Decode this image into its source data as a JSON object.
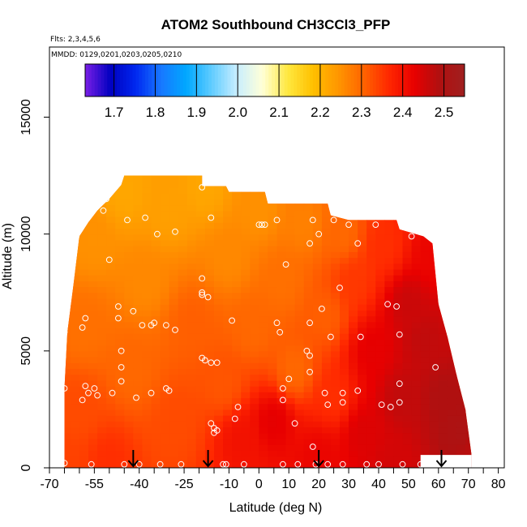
{
  "chart_data": {
    "type": "heatmap",
    "title": "ATOM2 Southbound CH3CCl3_PFP",
    "flights_label": "Flts: 2,3,4,5,6",
    "dates_label": "MMDD: 0129,0201,0203,0205,0210",
    "xlabel": "Latitude (deg N)",
    "ylabel": "Altitude (m)",
    "xlim": [
      -70,
      82
    ],
    "ylim": [
      0,
      18000
    ],
    "x_ticks": [
      -70,
      -55,
      -40,
      -25,
      -10,
      0,
      10,
      20,
      30,
      40,
      50,
      60,
      70,
      80
    ],
    "x_minor_ticks": [
      -65,
      -60,
      -50,
      -45,
      -35,
      -30,
      -20,
      -15,
      -5,
      5,
      15,
      25,
      35,
      45,
      55,
      65,
      75
    ],
    "y_ticks": [
      0,
      5000,
      10000,
      15000
    ],
    "colorbar": {
      "min": 1.63,
      "max": 2.55,
      "ticks": [
        1.7,
        1.8,
        1.9,
        2.0,
        2.1,
        2.2,
        2.3,
        2.4,
        2.5
      ],
      "colors": [
        "#7a1fe6",
        "#0000c0",
        "#0028f0",
        "#1878ff",
        "#00a8ff",
        "#60ccff",
        "#c8eeff",
        "#ffffd8",
        "#ffe840",
        "#ffc000",
        "#ff9600",
        "#ff6400",
        "#ff2800",
        "#e80000",
        "#b01010",
        "#a02020"
      ]
    },
    "domain_outline": [
      [
        -65,
        0
      ],
      [
        -65,
        3400
      ],
      [
        -64,
        5800
      ],
      [
        -62,
        7800
      ],
      [
        -60,
        9900
      ],
      [
        -57,
        10500
      ],
      [
        -54,
        11000
      ],
      [
        -50,
        11500
      ],
      [
        -46,
        12100
      ],
      [
        -45,
        12500
      ],
      [
        -19,
        12500
      ],
      [
        -19,
        12050
      ],
      [
        -11,
        12050
      ],
      [
        -10,
        11800
      ],
      [
        2,
        11800
      ],
      [
        3,
        11300
      ],
      [
        23,
        11300
      ],
      [
        24,
        10800
      ],
      [
        30,
        10600
      ],
      [
        46,
        10600
      ],
      [
        47,
        10200
      ],
      [
        55,
        9900
      ],
      [
        58,
        9600
      ],
      [
        60,
        7000
      ],
      [
        63,
        5600
      ],
      [
        66,
        4000
      ],
      [
        69,
        2500
      ],
      [
        71,
        600
      ],
      [
        71,
        0
      ]
    ],
    "white_gap": [
      [
        54,
        0
      ],
      [
        71,
        0
      ],
      [
        71,
        550
      ],
      [
        54,
        550
      ]
    ],
    "field_points": [
      {
        "lat": -65,
        "alt": 200,
        "value": 2.34
      },
      {
        "lat": -60,
        "alt": 2500,
        "value": 2.33
      },
      {
        "lat": -58,
        "alt": 6000,
        "value": 2.29
      },
      {
        "lat": -55,
        "alt": 9800,
        "value": 2.25
      },
      {
        "lat": -50,
        "alt": 300,
        "value": 2.36
      },
      {
        "lat": -45,
        "alt": 11800,
        "value": 2.22
      },
      {
        "lat": -42,
        "alt": 4200,
        "value": 2.3
      },
      {
        "lat": -38,
        "alt": 8000,
        "value": 2.26
      },
      {
        "lat": -30,
        "alt": 11000,
        "value": 2.23
      },
      {
        "lat": -28,
        "alt": 2000,
        "value": 2.33
      },
      {
        "lat": -22,
        "alt": 6200,
        "value": 2.31
      },
      {
        "lat": -18,
        "alt": 12000,
        "value": 2.22
      },
      {
        "lat": -12,
        "alt": 3600,
        "value": 2.32
      },
      {
        "lat": -10,
        "alt": 9000,
        "value": 2.26
      },
      {
        "lat": -6,
        "alt": 1200,
        "value": 2.4
      },
      {
        "lat": -2,
        "alt": 6000,
        "value": 2.3
      },
      {
        "lat": 0,
        "alt": 11000,
        "value": 2.25
      },
      {
        "lat": 5,
        "alt": 2000,
        "value": 2.43
      },
      {
        "lat": 8,
        "alt": 8000,
        "value": 2.29
      },
      {
        "lat": 12,
        "alt": 4200,
        "value": 2.3
      },
      {
        "lat": 15,
        "alt": 10500,
        "value": 2.27
      },
      {
        "lat": 20,
        "alt": 500,
        "value": 2.42
      },
      {
        "lat": 22,
        "alt": 6500,
        "value": 2.31
      },
      {
        "lat": 25,
        "alt": 3000,
        "value": 2.36
      },
      {
        "lat": 28,
        "alt": 10000,
        "value": 2.3
      },
      {
        "lat": 32,
        "alt": 8000,
        "value": 2.35
      },
      {
        "lat": 35,
        "alt": 1500,
        "value": 2.44
      },
      {
        "lat": 38,
        "alt": 5000,
        "value": 2.43
      },
      {
        "lat": 42,
        "alt": 9500,
        "value": 2.36
      },
      {
        "lat": 45,
        "alt": 300,
        "value": 2.45
      },
      {
        "lat": 48,
        "alt": 3000,
        "value": 2.47
      },
      {
        "lat": 50,
        "alt": 7000,
        "value": 2.46
      },
      {
        "lat": 55,
        "alt": 5500,
        "value": 2.47
      },
      {
        "lat": 58,
        "alt": 9000,
        "value": 2.42
      },
      {
        "lat": 62,
        "alt": 3000,
        "value": 2.49
      },
      {
        "lat": 67,
        "alt": 1500,
        "value": 2.5
      },
      {
        "lat": 70,
        "alt": 600,
        "value": 2.48
      }
    ],
    "samples": [
      {
        "lat": -65,
        "alt": 3400
      },
      {
        "lat": -65,
        "alt": 5800
      },
      {
        "lat": -65,
        "alt": 200
      },
      {
        "lat": -61,
        "alt": 9900
      },
      {
        "lat": -59,
        "alt": 2900
      },
      {
        "lat": -59,
        "alt": 6000
      },
      {
        "lat": -58,
        "alt": 6400
      },
      {
        "lat": -58,
        "alt": 3500
      },
      {
        "lat": -57,
        "alt": 3200
      },
      {
        "lat": -56,
        "alt": 150
      },
      {
        "lat": -55,
        "alt": 3400
      },
      {
        "lat": -54,
        "alt": 3100
      },
      {
        "lat": -52,
        "alt": 11000
      },
      {
        "lat": -51,
        "alt": 11500
      },
      {
        "lat": -50,
        "alt": 12300
      },
      {
        "lat": -50,
        "alt": 8900
      },
      {
        "lat": -49,
        "alt": 3200
      },
      {
        "lat": -47,
        "alt": 6900
      },
      {
        "lat": -47,
        "alt": 6400
      },
      {
        "lat": -46,
        "alt": 4300
      },
      {
        "lat": -46,
        "alt": 3700
      },
      {
        "lat": -46,
        "alt": 5000
      },
      {
        "lat": -45,
        "alt": 150
      },
      {
        "lat": -44,
        "alt": 10600
      },
      {
        "lat": -42,
        "alt": 6700
      },
      {
        "lat": -41,
        "alt": 3000
      },
      {
        "lat": -40,
        "alt": 150
      },
      {
        "lat": -39,
        "alt": 6100
      },
      {
        "lat": -38,
        "alt": 10700
      },
      {
        "lat": -36,
        "alt": 3200
      },
      {
        "lat": -36,
        "alt": 6100
      },
      {
        "lat": -35,
        "alt": 6200
      },
      {
        "lat": -34,
        "alt": 10000
      },
      {
        "lat": -33,
        "alt": 150
      },
      {
        "lat": -31,
        "alt": 6100
      },
      {
        "lat": -31,
        "alt": 3400
      },
      {
        "lat": -30,
        "alt": 3300
      },
      {
        "lat": -28,
        "alt": 10100
      },
      {
        "lat": -28,
        "alt": 5900
      },
      {
        "lat": -26,
        "alt": 150
      },
      {
        "lat": -19,
        "alt": 12000
      },
      {
        "lat": -19,
        "alt": 8100
      },
      {
        "lat": -19,
        "alt": 7500
      },
      {
        "lat": -19,
        "alt": 7400
      },
      {
        "lat": -19,
        "alt": 4700
      },
      {
        "lat": -18,
        "alt": 4600
      },
      {
        "lat": -17,
        "alt": 7300
      },
      {
        "lat": -16,
        "alt": 10700
      },
      {
        "lat": -16,
        "alt": 4500
      },
      {
        "lat": -16,
        "alt": 1900
      },
      {
        "lat": -15,
        "alt": 1700
      },
      {
        "lat": -15,
        "alt": 1500
      },
      {
        "lat": -14,
        "alt": 4500
      },
      {
        "lat": -14,
        "alt": 1600
      },
      {
        "lat": -12,
        "alt": 150
      },
      {
        "lat": -11,
        "alt": 150
      },
      {
        "lat": -9,
        "alt": 6300
      },
      {
        "lat": -8,
        "alt": 2100
      },
      {
        "lat": -7,
        "alt": 2600
      },
      {
        "lat": -5,
        "alt": 150
      },
      {
        "lat": 0,
        "alt": 10400
      },
      {
        "lat": 1,
        "alt": 10400
      },
      {
        "lat": 2,
        "alt": 10400
      },
      {
        "lat": 6,
        "alt": 10600
      },
      {
        "lat": 6,
        "alt": 6200
      },
      {
        "lat": 7,
        "alt": 5800
      },
      {
        "lat": 8,
        "alt": 3400
      },
      {
        "lat": 8,
        "alt": 2900
      },
      {
        "lat": 8,
        "alt": 150
      },
      {
        "lat": 9,
        "alt": 8700
      },
      {
        "lat": 10,
        "alt": 3800
      },
      {
        "lat": 12,
        "alt": 1900
      },
      {
        "lat": 13,
        "alt": 150
      },
      {
        "lat": 16,
        "alt": 5000
      },
      {
        "lat": 17,
        "alt": 9600
      },
      {
        "lat": 17,
        "alt": 4800
      },
      {
        "lat": 17,
        "alt": 6200
      },
      {
        "lat": 17,
        "alt": 4100
      },
      {
        "lat": 18,
        "alt": 10600
      },
      {
        "lat": 18,
        "alt": 900
      },
      {
        "lat": 19,
        "alt": 150
      },
      {
        "lat": 20,
        "alt": 10000
      },
      {
        "lat": 21,
        "alt": 6800
      },
      {
        "lat": 22,
        "alt": 3200
      },
      {
        "lat": 23,
        "alt": 2700
      },
      {
        "lat": 23,
        "alt": 150
      },
      {
        "lat": 24,
        "alt": 5600
      },
      {
        "lat": 25,
        "alt": 10600
      },
      {
        "lat": 27,
        "alt": 7700
      },
      {
        "lat": 28,
        "alt": 3200
      },
      {
        "lat": 28,
        "alt": 2800
      },
      {
        "lat": 28,
        "alt": 150
      },
      {
        "lat": 30,
        "alt": 10400
      },
      {
        "lat": 33,
        "alt": 9600
      },
      {
        "lat": 33,
        "alt": 3300
      },
      {
        "lat": 34,
        "alt": 5600
      },
      {
        "lat": 36,
        "alt": 150
      },
      {
        "lat": 39,
        "alt": 10400
      },
      {
        "lat": 40,
        "alt": 150
      },
      {
        "lat": 41,
        "alt": 2700
      },
      {
        "lat": 43,
        "alt": 7000
      },
      {
        "lat": 44,
        "alt": 2600
      },
      {
        "lat": 46,
        "alt": 6900
      },
      {
        "lat": 47,
        "alt": 5700
      },
      {
        "lat": 47,
        "alt": 3600
      },
      {
        "lat": 47,
        "alt": 2800
      },
      {
        "lat": 48,
        "alt": 150
      },
      {
        "lat": 51,
        "alt": 9900
      },
      {
        "lat": 54,
        "alt": 150
      },
      {
        "lat": 59,
        "alt": 4300
      }
    ],
    "arrows": [
      -42,
      -17,
      20,
      61
    ]
  }
}
